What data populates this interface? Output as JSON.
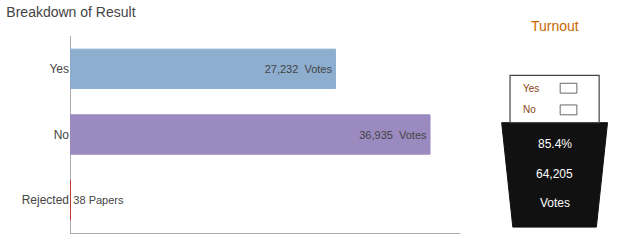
{
  "chart_data": {
    "type": "bar",
    "orientation": "horizontal",
    "title": "Breakdown of Result",
    "categories": [
      "Yes",
      "No",
      "Rejected"
    ],
    "values": [
      27232,
      36935,
      38
    ],
    "value_labels": [
      "27,232  Votes",
      "36,935  Votes",
      "38 Papers"
    ],
    "data_labels": true,
    "colors": [
      "#8eaed0",
      "#9b8abf",
      "#c0392b"
    ],
    "xlim": [
      0,
      40000
    ],
    "grid": false,
    "tick_labels": "y",
    "annotations": [
      "Turnout",
      "Yes",
      "No",
      "85.4%",
      "64,205",
      "Votes"
    ]
  }
}
